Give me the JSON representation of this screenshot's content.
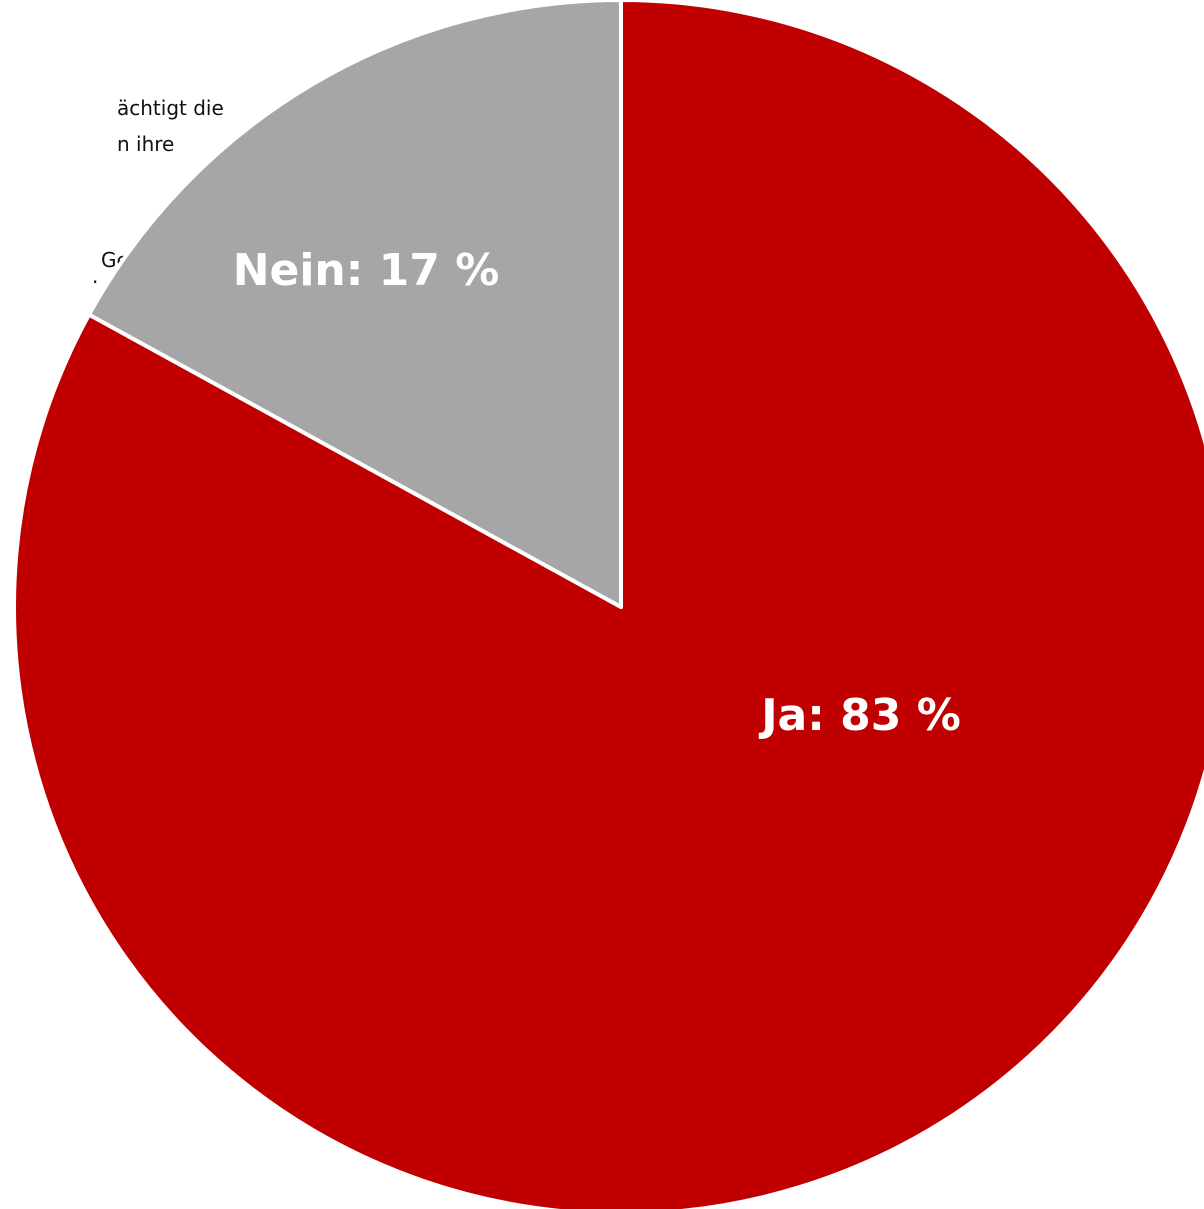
{
  "background_text": [
    "ächtigt die",
    "n ihre",
    "Gebieten.",
    ".",
    "."
  ],
  "chart_data": {
    "type": "pie",
    "categories": [
      "Ja",
      "Nein"
    ],
    "values": [
      83,
      17
    ],
    "unit": "%",
    "colors": [
      "#C00000",
      "#A6A6A6"
    ],
    "data_labels": [
      "Ja: 83 %",
      "Nein: 17 %"
    ],
    "start_angle_deg": 0,
    "direction": "clockwise",
    "separator_color": "#ffffff"
  }
}
